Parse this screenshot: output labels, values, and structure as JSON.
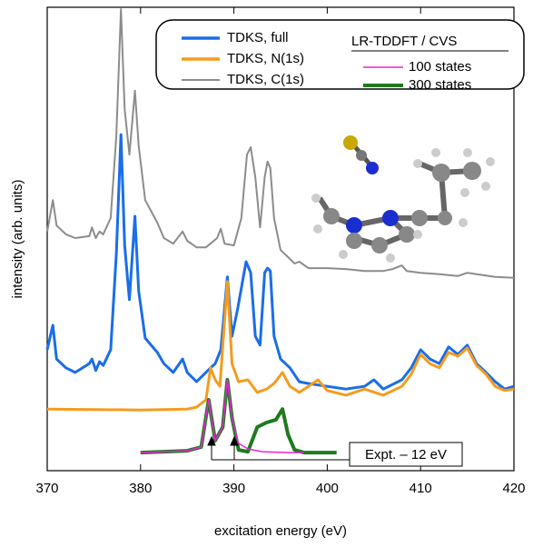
{
  "chart_data": {
    "type": "line",
    "xlabel": "excitation energy (eV)",
    "ylabel": "intensity (arb. units)",
    "xlim": [
      370,
      420
    ],
    "xticks": [
      370,
      380,
      390,
      400,
      410,
      420
    ],
    "ylim": [
      0,
      100
    ],
    "legend_title": "LR-TDDFT / CVS",
    "annotation": "Expt. – 12 eV",
    "series": [
      {
        "name": "TDKS, full",
        "color": "#1a6ee8",
        "x": [
          370,
          370.6,
          371,
          372,
          373,
          374.5,
          374.8,
          375.2,
          375.6,
          376,
          376.8,
          377.4,
          377.9,
          378.3,
          378.8,
          379.4,
          379.8,
          380.5,
          381.8,
          382.5,
          383.5,
          384.5,
          385,
          386,
          387.5,
          388,
          388.6,
          389.3,
          389.8,
          390.4,
          391.3,
          391.8,
          392.3,
          392.8,
          393.3,
          393.6,
          393.9,
          394.3,
          395,
          396,
          397,
          398,
          400,
          402,
          404,
          405,
          406,
          408,
          409,
          410,
          411,
          412,
          413,
          414,
          415,
          416,
          417,
          418,
          419,
          420
        ],
        "values": [
          26.1,
          31.4,
          24.1,
          22.2,
          21.2,
          23.1,
          24.1,
          21.6,
          23.5,
          22.7,
          26.1,
          46.7,
          72.5,
          48.6,
          36.9,
          54.9,
          38.8,
          28.6,
          25.5,
          23.1,
          21.2,
          24.1,
          21.2,
          19.2,
          22.2,
          23.1,
          26.1,
          41.8,
          29.0,
          34.9,
          45.1,
          42.7,
          29.0,
          27.1,
          42.7,
          43.7,
          43.1,
          29.0,
          24.1,
          22.2,
          19.2,
          18.8,
          18.2,
          17.6,
          18.2,
          19.6,
          17.6,
          19.6,
          22.2,
          26.1,
          24.1,
          23.1,
          26.7,
          25.1,
          27.1,
          23.1,
          21.2,
          19.2,
          17.6,
          18.2
        ]
      },
      {
        "name": "TDKS, N(1s)",
        "color": "#f39c1e",
        "x": [
          370,
          380,
          385,
          386,
          387,
          387.5,
          388,
          388.5,
          389.3,
          389.8,
          390.5,
          391.5,
          392.5,
          393.5,
          394.3,
          395.2,
          396,
          397,
          398,
          399,
          400,
          402,
          404,
          406,
          408,
          409,
          410,
          411,
          412,
          413,
          414,
          415,
          416,
          417,
          418,
          419,
          420
        ],
        "values": [
          13.3,
          13.1,
          13.3,
          13.7,
          15.3,
          22.2,
          19.6,
          18.2,
          40.8,
          23.1,
          19.2,
          19.6,
          16.9,
          17.6,
          18.8,
          21.2,
          18.2,
          16.9,
          18.2,
          19.6,
          17.3,
          16.3,
          17.6,
          16.3,
          18.2,
          20.8,
          25.1,
          23.1,
          22.2,
          25.5,
          24.7,
          26.5,
          22.7,
          20.8,
          18.2,
          17.3,
          17.6
        ]
      },
      {
        "name": "TDKS, C(1s)",
        "color": "#8c8c8c",
        "x": [
          370,
          370.6,
          371,
          372,
          373,
          374.5,
          374.8,
          375.2,
          375.6,
          376,
          376.8,
          377.4,
          377.9,
          378.3,
          378.8,
          379.4,
          379.8,
          380.5,
          381,
          381.8,
          382.5,
          383.5,
          384.5,
          385,
          386,
          387,
          388.2,
          388.6,
          389,
          390,
          390.8,
          391.4,
          391.8,
          392.3,
          392.8,
          393.3,
          393.6,
          393.9,
          394.3,
          395,
          396,
          396.5,
          397,
          398,
          400,
          402,
          404,
          406,
          407,
          408,
          408.5,
          410,
          412,
          414,
          415,
          416,
          418,
          420
        ],
        "values": [
          51.6,
          58.4,
          52.9,
          51.0,
          50.2,
          50.6,
          52.5,
          50.2,
          51.6,
          51.0,
          54.5,
          72.2,
          99.6,
          78.0,
          68.2,
          82.0,
          70.2,
          58.4,
          56.5,
          53.5,
          50.2,
          49.0,
          51.6,
          49.6,
          48.2,
          48.2,
          50.2,
          52.2,
          49.0,
          48.6,
          54.5,
          68.2,
          69.8,
          63.3,
          52.5,
          63.3,
          66.7,
          65.3,
          54.5,
          47.6,
          45.7,
          44.7,
          45.1,
          43.7,
          43.7,
          43.5,
          43.1,
          43.1,
          43.5,
          44.3,
          43.1,
          42.7,
          42.4,
          42.0,
          42.7,
          42.4,
          41.8,
          41.6
        ]
      },
      {
        "name": "100 states",
        "color": "#ee22d8",
        "x": [
          380,
          385,
          386.5,
          387.3,
          388,
          388.8,
          389.3,
          389.8,
          390.5,
          391.5,
          393,
          396,
          397.5
        ],
        "values": [
          3.9,
          4.3,
          5.1,
          15.3,
          6.5,
          9.4,
          19.6,
          11.4,
          5.9,
          4.7,
          4.1,
          3.9,
          3.9
        ]
      },
      {
        "name": "300 states",
        "color": "#1e7a1e",
        "x": [
          380,
          385,
          386.5,
          387.3,
          388,
          388.8,
          389.3,
          389.8,
          390.5,
          391.5,
          392.5,
          393.5,
          394.5,
          395.2,
          395.8,
          396.5,
          397.5,
          401
        ],
        "values": [
          3.9,
          4.3,
          5.1,
          15.3,
          6.5,
          9.4,
          19.6,
          11.4,
          4.5,
          4.1,
          9.4,
          10.4,
          11.0,
          13.3,
          7.8,
          4.5,
          3.9,
          3.9
        ]
      }
    ]
  }
}
